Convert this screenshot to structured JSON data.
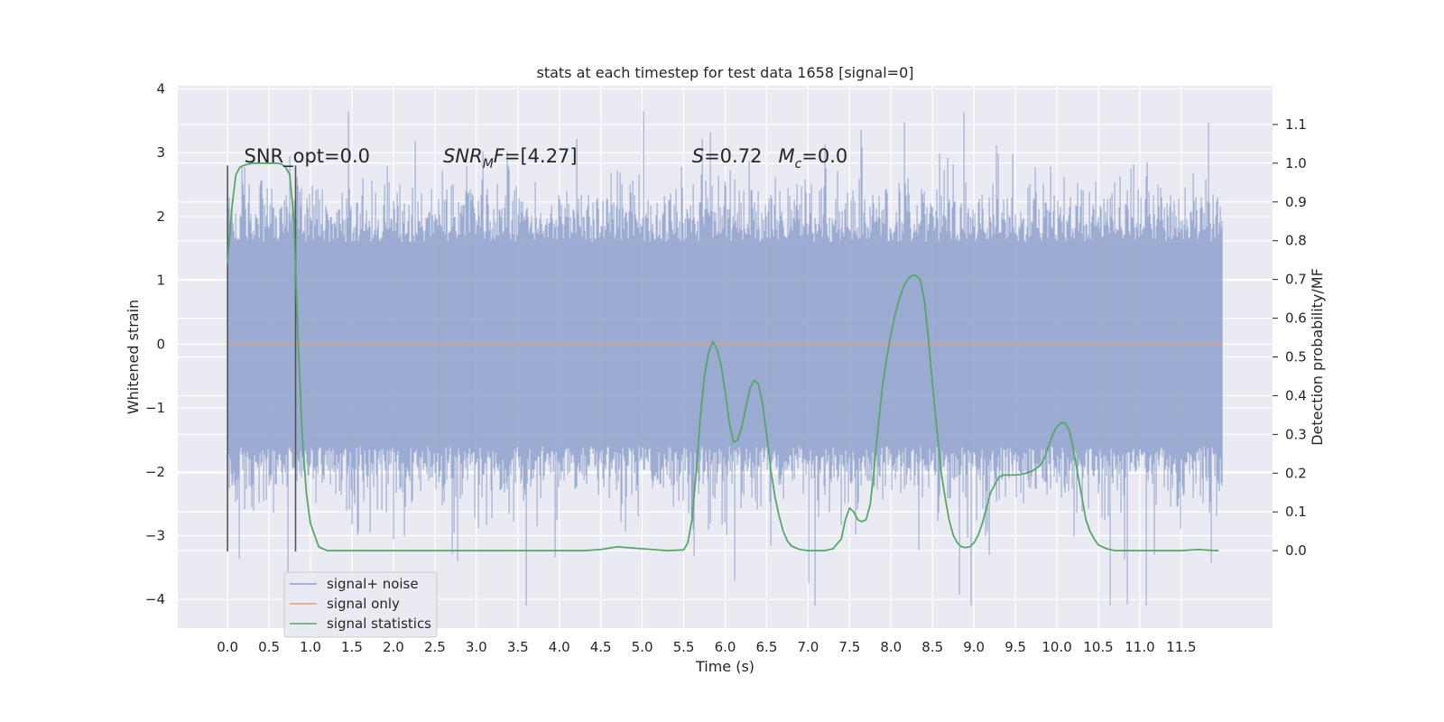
{
  "chart_data": {
    "type": "line",
    "title": "stats at each timestep for test data 1658 [signal=0]",
    "xlabel": "Time (s)",
    "ylabel": "Whitened strain",
    "ylabel_right": "Detection probability/MF",
    "xlim": [
      -0.6,
      12.6
    ],
    "ylim": [
      -4.45,
      4.05
    ],
    "ylim_right": [
      -0.2,
      1.2
    ],
    "x_ticks": [
      0.0,
      0.5,
      1.0,
      1.5,
      2.0,
      2.5,
      3.0,
      3.5,
      4.0,
      4.5,
      5.0,
      5.5,
      6.0,
      6.5,
      7.0,
      7.5,
      8.0,
      8.5,
      9.0,
      9.5,
      10.0,
      10.5,
      11.0,
      11.5
    ],
    "x_tick_labels": [
      "0.0",
      "0.5",
      "1.0",
      "1.5",
      "2.0",
      "2.5",
      "3.0",
      "3.5",
      "4.0",
      "4.5",
      "5.0",
      "5.5",
      "6.0",
      "6.5",
      "7.0",
      "7.5",
      "8.0",
      "8.5",
      "9.0",
      "9.5",
      "10.0",
      "10.5",
      "11.0",
      "11.5"
    ],
    "y_ticks": [
      -4,
      -3,
      -2,
      -1,
      0,
      1,
      2,
      3,
      4
    ],
    "y_tick_labels": [
      "−4",
      "−3",
      "−2",
      "−1",
      "0",
      "1",
      "2",
      "3",
      "4"
    ],
    "y_right_ticks": [
      0.0,
      0.1,
      0.2,
      0.3,
      0.4,
      0.5,
      0.6,
      0.7,
      0.8,
      0.9,
      1.0,
      1.1
    ],
    "y_right_tick_labels": [
      "0.0",
      "0.1",
      "0.2",
      "0.3",
      "0.4",
      "0.5",
      "0.6",
      "0.7",
      "0.8",
      "0.9",
      "1.0",
      "1.1"
    ],
    "grid": true,
    "legend_position": "bottom-left",
    "series": [
      {
        "name": "signal+ noise",
        "color": "#8da0cb",
        "axis": "left",
        "kind": "noise-band",
        "x_range": [
          0.0,
          12.0
        ],
        "note_values": "dense whitened noise, amplitude roughly within [-2.2, 2.5] with spikes to about ±3.6"
      },
      {
        "name": "signal only",
        "color": "#e5a07e",
        "axis": "left",
        "x": [
          0.0,
          12.0
        ],
        "values": [
          0.0,
          0.0
        ]
      },
      {
        "name": "signal statistics",
        "color": "#55a868",
        "axis": "right",
        "x": [
          0.0,
          0.05,
          0.1,
          0.15,
          0.2,
          0.3,
          0.4,
          0.5,
          0.6,
          0.65,
          0.7,
          0.75,
          0.8,
          0.85,
          0.9,
          0.95,
          1.0,
          1.1,
          1.2,
          1.5,
          2.0,
          2.5,
          3.0,
          3.5,
          4.0,
          4.3,
          4.5,
          4.7,
          5.0,
          5.3,
          5.5,
          5.55,
          5.6,
          5.65,
          5.7,
          5.75,
          5.8,
          5.85,
          5.9,
          5.95,
          6.0,
          6.05,
          6.1,
          6.15,
          6.2,
          6.25,
          6.3,
          6.35,
          6.4,
          6.45,
          6.5,
          6.55,
          6.6,
          6.65,
          6.7,
          6.75,
          6.8,
          6.9,
          7.0,
          7.1,
          7.2,
          7.3,
          7.4,
          7.45,
          7.5,
          7.55,
          7.6,
          7.65,
          7.7,
          7.75,
          7.8,
          7.85,
          7.9,
          7.95,
          8.0,
          8.05,
          8.1,
          8.15,
          8.2,
          8.25,
          8.3,
          8.35,
          8.4,
          8.45,
          8.5,
          8.55,
          8.6,
          8.65,
          8.7,
          8.75,
          8.8,
          8.85,
          8.9,
          8.95,
          9.0,
          9.05,
          9.1,
          9.15,
          9.2,
          9.25,
          9.3,
          9.35,
          9.4,
          9.45,
          9.5,
          9.6,
          9.7,
          9.8,
          9.85,
          9.9,
          9.95,
          10.0,
          10.05,
          10.1,
          10.15,
          10.2,
          10.25,
          10.3,
          10.35,
          10.4,
          10.45,
          10.5,
          10.6,
          10.7,
          10.8,
          11.0,
          11.3,
          11.5,
          11.7,
          11.9,
          11.95
        ],
        "values": [
          0.74,
          0.88,
          0.97,
          0.99,
          0.995,
          1.0,
          1.0,
          1.0,
          1.0,
          0.998,
          0.99,
          0.97,
          0.85,
          0.55,
          0.3,
          0.15,
          0.07,
          0.01,
          0.0,
          0.0,
          0.0,
          0.0,
          0.0,
          0.0,
          0.0,
          0.0,
          0.003,
          0.01,
          0.005,
          0.0,
          0.002,
          0.02,
          0.08,
          0.2,
          0.34,
          0.45,
          0.51,
          0.54,
          0.52,
          0.48,
          0.41,
          0.33,
          0.28,
          0.285,
          0.32,
          0.37,
          0.42,
          0.44,
          0.43,
          0.38,
          0.3,
          0.21,
          0.14,
          0.09,
          0.05,
          0.025,
          0.012,
          0.003,
          0.0,
          0.0,
          0.0,
          0.005,
          0.03,
          0.08,
          0.11,
          0.1,
          0.08,
          0.075,
          0.08,
          0.12,
          0.22,
          0.33,
          0.43,
          0.5,
          0.56,
          0.61,
          0.65,
          0.68,
          0.7,
          0.71,
          0.71,
          0.7,
          0.65,
          0.55,
          0.43,
          0.32,
          0.21,
          0.14,
          0.08,
          0.04,
          0.02,
          0.01,
          0.008,
          0.01,
          0.02,
          0.04,
          0.07,
          0.11,
          0.15,
          0.17,
          0.19,
          0.195,
          0.195,
          0.195,
          0.195,
          0.198,
          0.205,
          0.22,
          0.24,
          0.27,
          0.3,
          0.32,
          0.33,
          0.33,
          0.31,
          0.26,
          0.2,
          0.14,
          0.08,
          0.05,
          0.03,
          0.015,
          0.005,
          0.0,
          0.0,
          0.0,
          0.0,
          0.0,
          0.003,
          0.0,
          0.0
        ]
      }
    ],
    "vertical_markers": [
      {
        "x": 0.0,
        "ymin": -3.25,
        "ymax": 2.8,
        "color": "#555555"
      },
      {
        "x": 0.82,
        "ymin": -3.25,
        "ymax": 2.8,
        "color": "#555555"
      }
    ],
    "annotations": [
      {
        "id": "snr_opt",
        "text": "SNR_opt=0.0",
        "x": 0.2,
        "y": 2.85
      },
      {
        "id": "snr_mf",
        "prefix": "SNR",
        "sub": "M",
        "suffix": "F=[4.27]",
        "x": 2.6,
        "y": 2.85
      },
      {
        "id": "s_mc",
        "s_label": "S",
        "s_value": "=0.72",
        "mc_label": "M",
        "mc_sub": "c",
        "mc_value": "=0.0",
        "x": 5.6,
        "y": 2.85
      }
    ]
  }
}
